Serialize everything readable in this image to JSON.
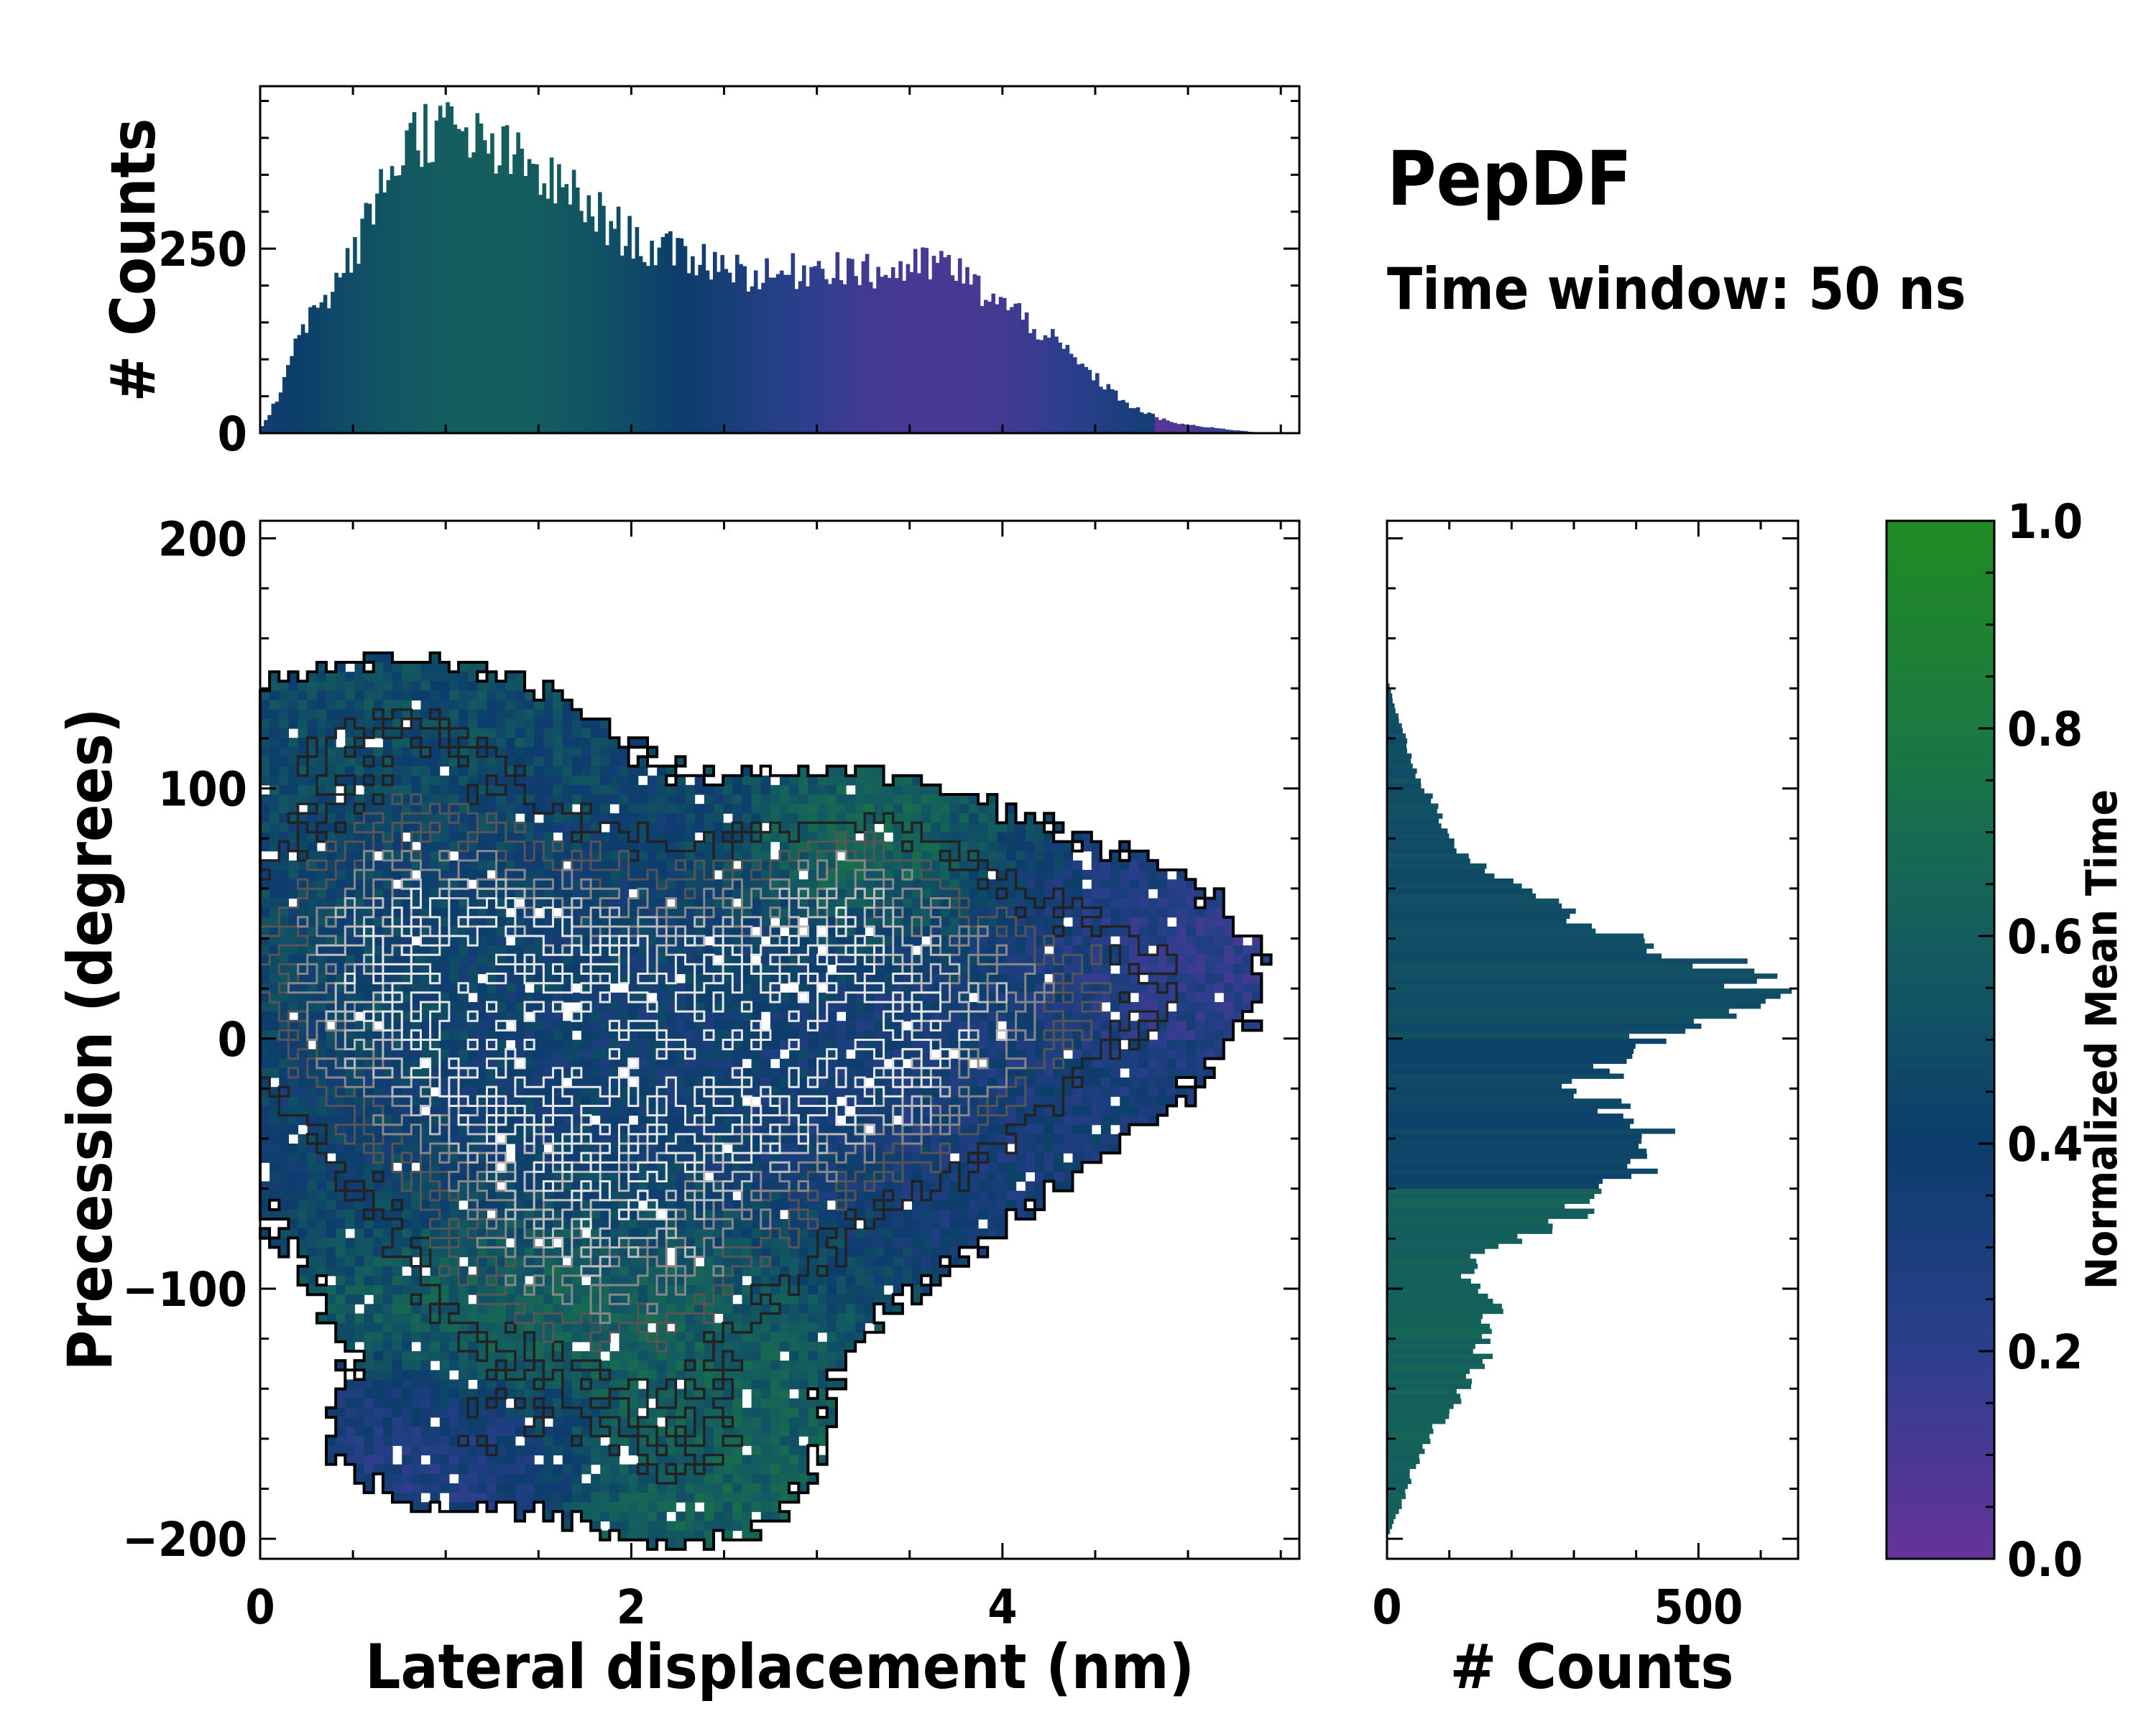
{
  "title": "PepDF",
  "subtitle": "Time window: 50 ns",
  "chart_data": [
    {
      "type": "heatmap",
      "name": "joint-2d-histogram",
      "xlabel": "Lateral displacement (nm)",
      "ylabel": "Precession (degrees)",
      "xlim": [
        0,
        5.6
      ],
      "ylim": [
        -208,
        207
      ],
      "xticks": [
        0,
        2,
        4
      ],
      "xtick_labels": [
        "0",
        "2",
        "4"
      ],
      "yticks": [
        200,
        100,
        0,
        -100,
        -200
      ],
      "ytick_labels": [
        "200",
        "100",
        "0",
        "−100",
        "−200"
      ],
      "color_value": "Normalized Mean Time",
      "contours": true,
      "regions": [
        {
          "x": 0.9,
          "y": 30,
          "sx": 0.7,
          "sy": 45,
          "w": 1.0,
          "t": 0.45
        },
        {
          "x": 2.0,
          "y": -25,
          "sx": 0.9,
          "sy": 50,
          "w": 0.9,
          "t": 0.35
        },
        {
          "x": 3.1,
          "y": 15,
          "sx": 0.9,
          "sy": 40,
          "w": 0.8,
          "t": 0.42
        },
        {
          "x": 1.8,
          "y": -95,
          "sx": 0.7,
          "sy": 30,
          "w": 0.45,
          "t": 0.75
        },
        {
          "x": 3.2,
          "y": 65,
          "sx": 0.4,
          "sy": 20,
          "w": 0.3,
          "t": 0.92
        },
        {
          "x": 4.6,
          "y": 25,
          "sx": 0.5,
          "sy": 25,
          "w": 0.25,
          "t": 0.12
        },
        {
          "x": 2.3,
          "y": -165,
          "sx": 0.45,
          "sy": 25,
          "w": 0.3,
          "t": 0.62
        },
        {
          "x": 1.1,
          "y": -160,
          "sx": 0.5,
          "sy": 20,
          "w": 0.25,
          "t": 0.25
        },
        {
          "x": 0.7,
          "y": 120,
          "sx": 0.6,
          "sy": 20,
          "w": 0.25,
          "t": 0.5
        },
        {
          "x": 3.5,
          "y": -10,
          "sx": 0.5,
          "sy": 30,
          "w": 0.35,
          "t": 0.2
        }
      ]
    },
    {
      "type": "bar",
      "name": "top-marginal-histogram",
      "xlabel": "",
      "ylabel": "# Counts",
      "xlim": [
        0,
        5.6
      ],
      "ylim": [
        0,
        470
      ],
      "yticks": [
        0,
        250
      ],
      "ytick_labels": [
        "0",
        "250"
      ],
      "bin_width": 0.02,
      "curve_x": [
        0.0,
        0.1,
        0.2,
        0.35,
        0.5,
        0.65,
        0.8,
        0.95,
        1.1,
        1.3,
        1.5,
        1.7,
        1.9,
        2.1,
        2.3,
        2.5,
        2.7,
        2.9,
        3.1,
        3.3,
        3.5,
        3.7,
        3.9,
        4.1,
        4.3,
        4.5,
        4.7,
        4.9,
        5.1,
        5.3,
        5.4
      ],
      "curve_y": [
        5,
        50,
        140,
        180,
        240,
        330,
        400,
        415,
        400,
        380,
        350,
        320,
        280,
        250,
        240,
        230,
        210,
        220,
        230,
        215,
        225,
        230,
        190,
        160,
        120,
        75,
        35,
        15,
        8,
        3,
        0
      ],
      "color_value": "Normalized Mean Time"
    },
    {
      "type": "bar",
      "orientation": "horizontal",
      "name": "right-marginal-histogram",
      "xlabel": "# Counts",
      "ylabel": "",
      "xlim": [
        0,
        660
      ],
      "ylim": [
        -208,
        207
      ],
      "xticks": [
        0,
        500
      ],
      "xtick_labels": [
        "0",
        "500"
      ],
      "bin_width": 2,
      "curve_y": [
        -200,
        -185,
        -170,
        -150,
        -130,
        -110,
        -95,
        -85,
        -75,
        -60,
        -50,
        -40,
        -30,
        -20,
        -10,
        0,
        10,
        20,
        30,
        40,
        50,
        60,
        70,
        80,
        90,
        100,
        110,
        120,
        130,
        145
      ],
      "curve_x": [
        0,
        25,
        45,
        95,
        150,
        175,
        130,
        150,
        280,
        360,
        420,
        430,
        380,
        300,
        380,
        420,
        540,
        600,
        540,
        400,
        290,
        210,
        150,
        100,
        80,
        60,
        40,
        30,
        15,
        0
      ],
      "color_value": "Normalized Mean Time"
    }
  ],
  "colorbar": {
    "label": "Normalized Mean Time",
    "min": 0.0,
    "max": 1.0,
    "ticks": [
      1.0,
      0.8,
      0.6,
      0.4,
      0.2,
      0.0
    ],
    "tick_labels": [
      "1.0",
      "0.8",
      "0.6",
      "0.4",
      "0.2",
      "0.0"
    ],
    "colors": [
      "#663399",
      "#2b3f8c",
      "#0c3d6c",
      "#145e5e",
      "#1a7a40",
      "#228b22"
    ]
  }
}
